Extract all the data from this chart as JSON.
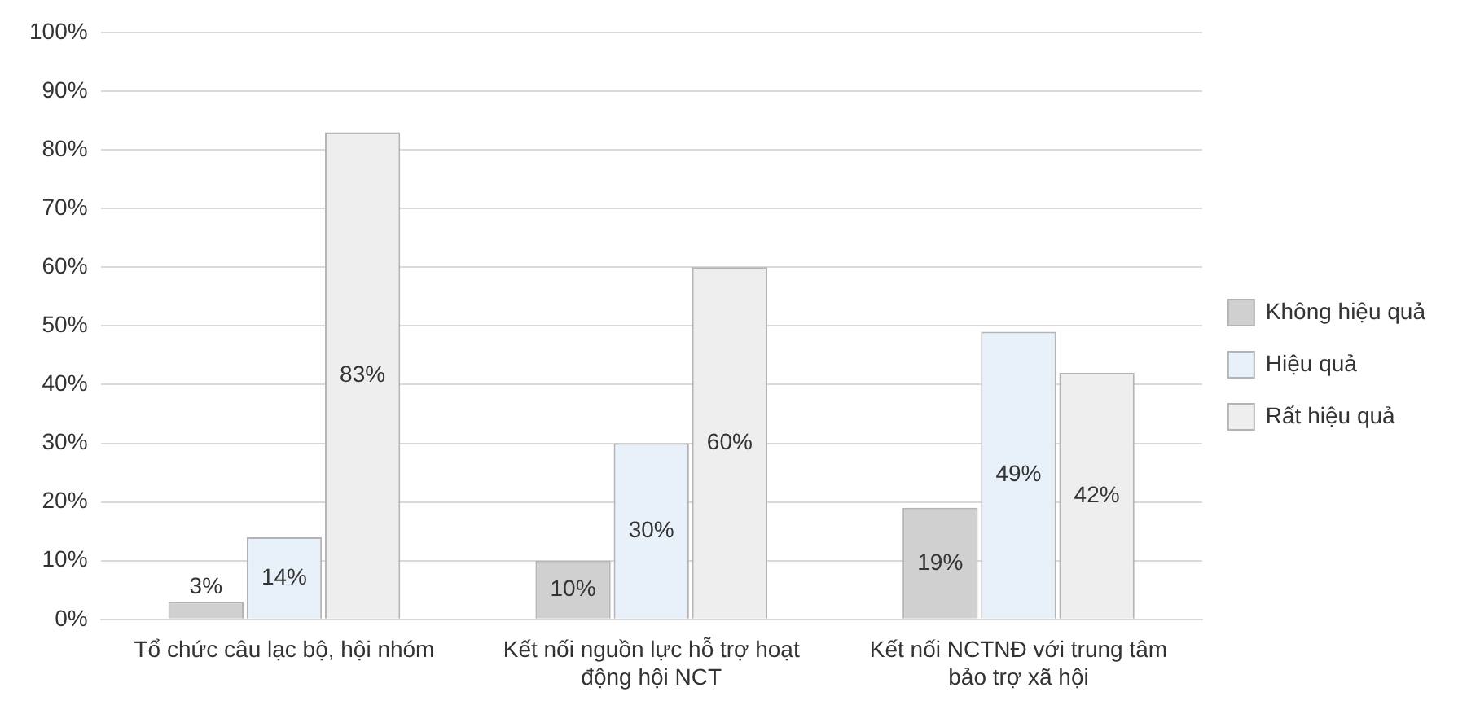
{
  "chart_data": {
    "type": "bar",
    "categories": [
      "Tổ chức câu lạc bộ, hội nhóm",
      "Kết nối nguồn lực hỗ trợ hoạt động hội NCT",
      "Kết nối NCTNĐ với trung tâm bảo trợ xã hội"
    ],
    "series": [
      {
        "name": "Không hiệu quả",
        "color": "#d0d0d0",
        "values": [
          3,
          10,
          19
        ],
        "value_labels": [
          "3%",
          "10%",
          "19%"
        ]
      },
      {
        "name": "Hiệu quả",
        "color": "#e8f0fa",
        "values": [
          14,
          30,
          49
        ],
        "value_labels": [
          "14%",
          "30%",
          "49%"
        ]
      },
      {
        "name": "Rất hiệu quả",
        "color": "#eeeeee",
        "values": [
          83,
          60,
          42
        ],
        "value_labels": [
          "83%",
          "60%",
          "42%"
        ]
      }
    ],
    "ylim": [
      0,
      100
    ],
    "yticks": [
      {
        "value": 0,
        "label": "0%"
      },
      {
        "value": 10,
        "label": "10%"
      },
      {
        "value": 20,
        "label": "20%"
      },
      {
        "value": 30,
        "label": "30%"
      },
      {
        "value": 40,
        "label": "40%"
      },
      {
        "value": 50,
        "label": "50%"
      },
      {
        "value": 60,
        "label": "60%"
      },
      {
        "value": 70,
        "label": "70%"
      },
      {
        "value": 80,
        "label": "80%"
      },
      {
        "value": 90,
        "label": "90%"
      },
      {
        "value": 100,
        "label": "100%"
      }
    ],
    "grid": "y",
    "legend": "right"
  }
}
